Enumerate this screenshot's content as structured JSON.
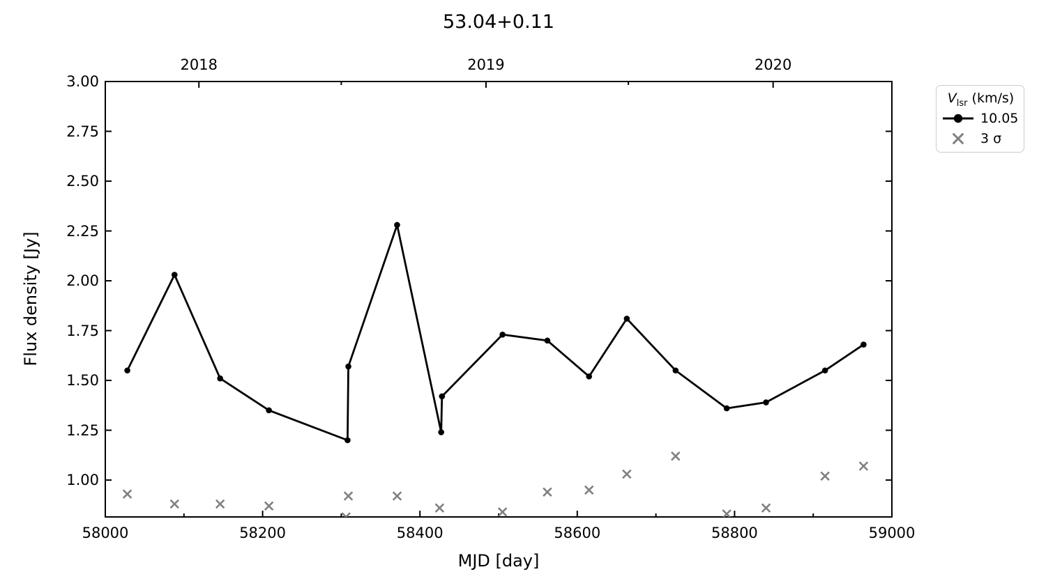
{
  "title": "53.04+0.11",
  "colors": {
    "series": "#000000",
    "sigma": "#808080",
    "axes": "#000000",
    "legend_border": "#cccccc",
    "background": "#ffffff"
  },
  "legend": {
    "title": {
      "variable": "V",
      "subscript": "lsr",
      "suffix": " (km/s)"
    },
    "entries": [
      {
        "label": "10.05",
        "marker": "line-circle",
        "color": "#000000"
      },
      {
        "label": "3 σ",
        "marker": "x",
        "color": "#808080"
      }
    ]
  },
  "chart_data": {
    "type": "line",
    "title": "53.04+0.11",
    "xlabel": "MJD [day]",
    "ylabel": "Flux density [Jy]",
    "xlim": [
      58000,
      59000
    ],
    "ylim": [
      0.815,
      3.0
    ],
    "grid": false,
    "legend_position": "outside-upper-right",
    "x_axis": {
      "major": [
        {
          "v": 58000,
          "label": "58000"
        },
        {
          "v": 58200,
          "label": "58200"
        },
        {
          "v": 58400,
          "label": "58400"
        },
        {
          "v": 58600,
          "label": "58600"
        },
        {
          "v": 58800,
          "label": "58800"
        },
        {
          "v": 59000,
          "label": "59000"
        }
      ],
      "minor": [
        58100,
        58300,
        58500,
        58700,
        58900
      ]
    },
    "y_axis": {
      "major": [
        {
          "v": 1.0,
          "label": "1.00"
        },
        {
          "v": 1.25,
          "label": "1.25"
        },
        {
          "v": 1.5,
          "label": "1.50"
        },
        {
          "v": 1.75,
          "label": "1.75"
        },
        {
          "v": 2.0,
          "label": "2.00"
        },
        {
          "v": 2.25,
          "label": "2.25"
        },
        {
          "v": 2.5,
          "label": "2.50"
        },
        {
          "v": 2.75,
          "label": "2.75"
        },
        {
          "v": 3.0,
          "label": "3.00"
        }
      ]
    },
    "top_axis": {
      "major": [
        {
          "v": 58119,
          "label": "2018"
        },
        {
          "v": 58484,
          "label": "2019"
        },
        {
          "v": 58849,
          "label": "2020"
        }
      ],
      "minor": [
        58300,
        58665
      ]
    },
    "series": [
      {
        "name": "10.05",
        "style": "line-circle",
        "color": "#000000",
        "x": [
          58028,
          58088,
          58146,
          58208,
          58308,
          58309,
          58371,
          58427,
          58428,
          58505,
          58562,
          58615,
          58663,
          58725,
          58790,
          58840,
          58915,
          58964
        ],
        "y": [
          1.55,
          2.03,
          1.51,
          1.35,
          1.2,
          1.57,
          2.28,
          1.24,
          1.42,
          1.73,
          1.7,
          1.52,
          1.81,
          1.55,
          1.36,
          1.39,
          1.55,
          1.68
        ]
      },
      {
        "name": "3 σ",
        "style": "x",
        "color": "#808080",
        "x": [
          58028,
          58088,
          58146,
          58208,
          58306,
          58309,
          58371,
          58425,
          58505,
          58562,
          58615,
          58663,
          58725,
          58790,
          58840,
          58915,
          58964
        ],
        "y": [
          0.93,
          0.88,
          0.88,
          0.87,
          0.815,
          0.92,
          0.92,
          0.86,
          0.84,
          0.94,
          0.95,
          1.03,
          1.12,
          0.83,
          0.86,
          1.02,
          1.07
        ]
      }
    ]
  }
}
